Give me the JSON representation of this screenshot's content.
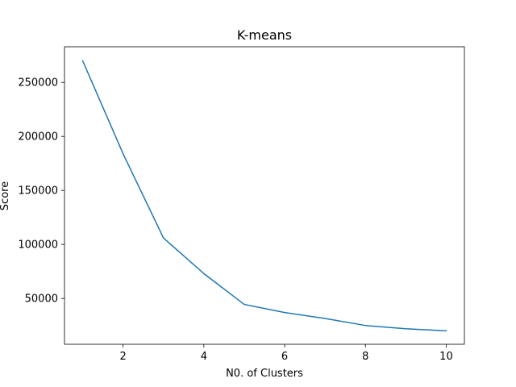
{
  "chart_data": {
    "type": "line",
    "title": "K-means",
    "xlabel": "N0. of Clusters",
    "ylabel": "Score",
    "xlim": [
      0.55,
      10.45
    ],
    "ylim": [
      7600,
      283000
    ],
    "xticks": [
      2,
      4,
      6,
      8,
      10
    ],
    "yticks": [
      50000,
      100000,
      150000,
      200000,
      250000
    ],
    "grid": false,
    "series": [
      {
        "color": "#1f77b4",
        "x": [
          1,
          2,
          3,
          4,
          5,
          6,
          7,
          8,
          9,
          10
        ],
        "y": [
          270000,
          184000,
          106000,
          73000,
          44500,
          37000,
          31500,
          25000,
          22000,
          20000
        ]
      }
    ]
  }
}
